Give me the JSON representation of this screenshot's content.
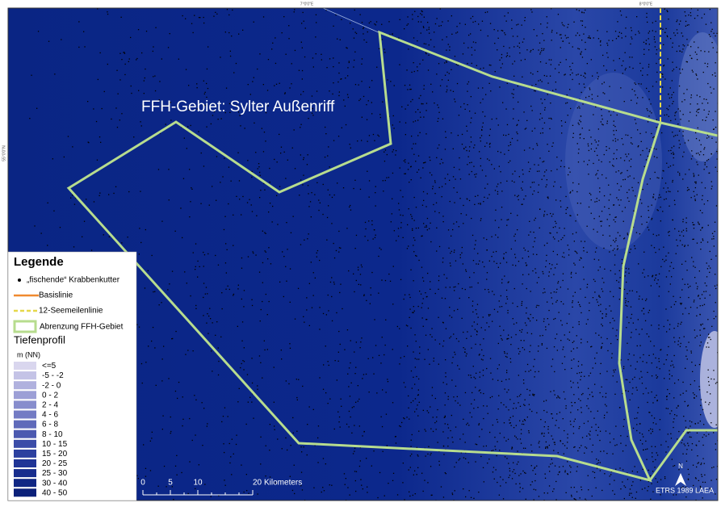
{
  "map": {
    "title": "FFH-Gebiet: Sylter Außenriff",
    "graticule": {
      "top": [
        "7°0'0\"E",
        "8°0'0\"E"
      ],
      "left": [
        "55°0'0\"N"
      ]
    },
    "legend": {
      "title": "Legende",
      "items": [
        {
          "label": "„fischende“ Krabbenkutter"
        },
        {
          "label": "Basislinie"
        },
        {
          "label": "12-Seemeilenlinie"
        },
        {
          "label": "Abrenzung FFH-Gebiet"
        }
      ],
      "depth_title": "Tiefenprofil",
      "depth_unit": "m (NN)",
      "depth_classes": [
        {
          "label": "<=5",
          "color": "#d9d6ee"
        },
        {
          "label": "-5 - -2",
          "color": "#c4c3e6"
        },
        {
          "label": "-2 - 0",
          "color": "#b0b1de"
        },
        {
          "label": "0 - 2",
          "color": "#9c9fd6"
        },
        {
          "label": "2 - 4",
          "color": "#878dcd"
        },
        {
          "label": "4 - 6",
          "color": "#737bc4"
        },
        {
          "label": "6 - 8",
          "color": "#5f6aba"
        },
        {
          "label": "8 - 10",
          "color": "#4b59b0"
        },
        {
          "label": "10 - 15",
          "color": "#3b4ca8"
        },
        {
          "label": "15 - 20",
          "color": "#2c409f"
        },
        {
          "label": "20 - 25",
          "color": "#203596"
        },
        {
          "label": "25 - 30",
          "color": "#172d8d"
        },
        {
          "label": "30 - 40",
          "color": "#102784"
        },
        {
          "label": "40 - 50",
          "color": "#0b2079"
        }
      ]
    },
    "scale_bar": {
      "ticks": [
        0,
        5,
        10,
        20
      ],
      "unit": "Kilometers"
    },
    "north": "N",
    "projection": "ETRS 1989 LAEA"
  }
}
